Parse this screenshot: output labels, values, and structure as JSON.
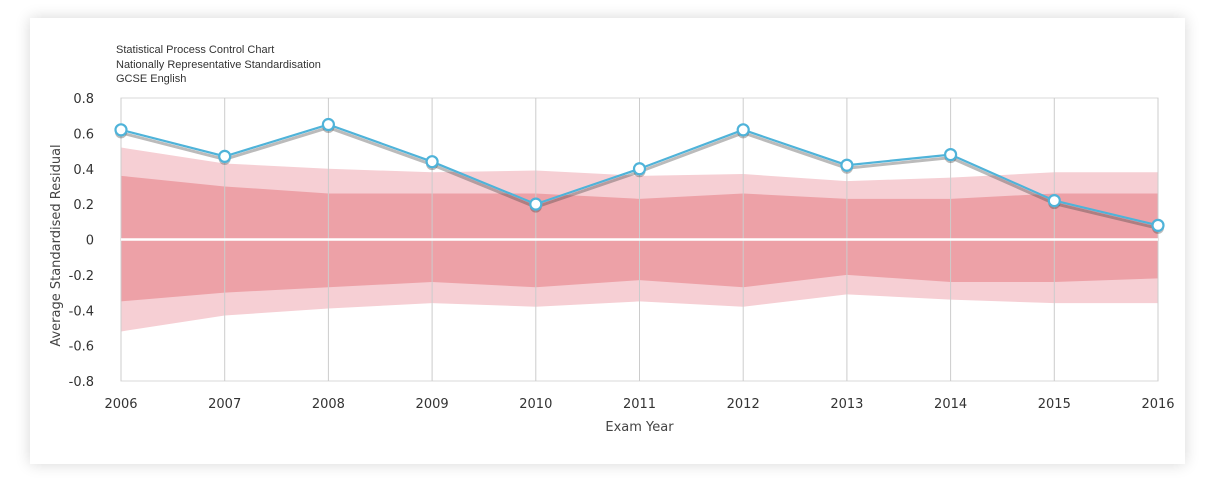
{
  "chart_data": {
    "type": "line",
    "title": "Statistical Process Control Chart",
    "subtitle_lines": [
      "Nationally Representative Standardisation",
      "GCSE English"
    ],
    "xlabel": "Exam Year",
    "ylabel": "Average Standardised Residual",
    "categories": [
      "2006",
      "2007",
      "2008",
      "2009",
      "2010",
      "2011",
      "2012",
      "2013",
      "2014",
      "2015",
      "2016"
    ],
    "y_ticks": [
      0.8,
      0.6,
      0.4,
      0.2,
      0,
      -0.2,
      -0.4,
      -0.6,
      -0.8
    ],
    "y_tick_labels": [
      "0.8",
      "0.6",
      "0.4",
      "0.2",
      "0",
      "-0.2",
      "-0.4",
      "-0.6",
      "-0.8"
    ],
    "ylim": [
      -0.8,
      0.8
    ],
    "grid": "vertical",
    "series": [
      {
        "name": "Average Standardised Residual",
        "color": "#4fb3d9",
        "values": [
          0.62,
          0.47,
          0.65,
          0.44,
          0.2,
          0.4,
          0.62,
          0.42,
          0.48,
          0.22,
          0.08
        ]
      }
    ],
    "bands": [
      {
        "name": "outer control limit",
        "color": "#f6cfd4",
        "upper": [
          0.52,
          0.43,
          0.4,
          0.38,
          0.39,
          0.36,
          0.37,
          0.33,
          0.35,
          0.38,
          0.38
        ],
        "lower": [
          -0.52,
          -0.43,
          -0.39,
          -0.36,
          -0.38,
          -0.35,
          -0.38,
          -0.31,
          -0.34,
          -0.36,
          -0.36
        ]
      },
      {
        "name": "inner control limit",
        "color": "#eda1a7",
        "upper": [
          0.36,
          0.3,
          0.26,
          0.26,
          0.26,
          0.23,
          0.26,
          0.23,
          0.23,
          0.26,
          0.26
        ],
        "lower": [
          -0.35,
          -0.3,
          -0.27,
          -0.24,
          -0.27,
          -0.23,
          -0.27,
          -0.2,
          -0.24,
          -0.24,
          -0.22
        ]
      }
    ]
  }
}
